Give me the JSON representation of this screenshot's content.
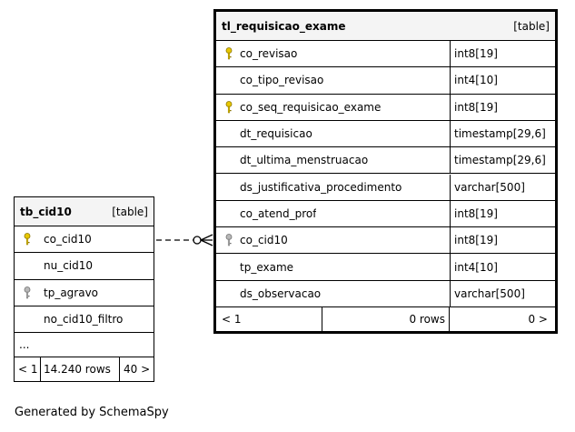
{
  "tables": {
    "requisicao": {
      "name": "tl_requisicao_exame",
      "type_label": "[table]",
      "columns": [
        {
          "name": "co_revisao",
          "type": "int8[19]",
          "key": "primary"
        },
        {
          "name": "co_tipo_revisao",
          "type": "int4[10]",
          "key": ""
        },
        {
          "name": "co_seq_requisicao_exame",
          "type": "int8[19]",
          "key": "primary"
        },
        {
          "name": "dt_requisicao",
          "type": "timestamp[29,6]",
          "key": ""
        },
        {
          "name": "dt_ultima_menstruacao",
          "type": "timestamp[29,6]",
          "key": ""
        },
        {
          "name": "ds_justificativa_procedimento",
          "type": "varchar[500]",
          "key": ""
        },
        {
          "name": "co_atend_prof",
          "type": "int8[19]",
          "key": ""
        },
        {
          "name": "co_cid10",
          "type": "int8[19]",
          "key": "foreign"
        },
        {
          "name": "tp_exame",
          "type": "int4[10]",
          "key": ""
        },
        {
          "name": "ds_observacao",
          "type": "varchar[500]",
          "key": ""
        }
      ],
      "footer": {
        "parents": "< 1",
        "rows": "0 rows",
        "children": "0 >"
      }
    },
    "cid10": {
      "name": "tb_cid10",
      "type_label": "[table]",
      "columns": [
        {
          "name": "co_cid10",
          "key": "primary"
        },
        {
          "name": "nu_cid10",
          "key": ""
        },
        {
          "name": "tp_agravo",
          "key": "foreign"
        },
        {
          "name": "no_cid10_filtro",
          "key": ""
        }
      ],
      "more": "...",
      "footer": {
        "parents": "< 1",
        "rows": "14.240 rows",
        "children": "40 >"
      }
    }
  },
  "colors": {
    "primary_key": "#e8c800",
    "foreign_key": "#b8b8b8",
    "border": "#000000"
  },
  "generated_by": "Generated by SchemaSpy"
}
